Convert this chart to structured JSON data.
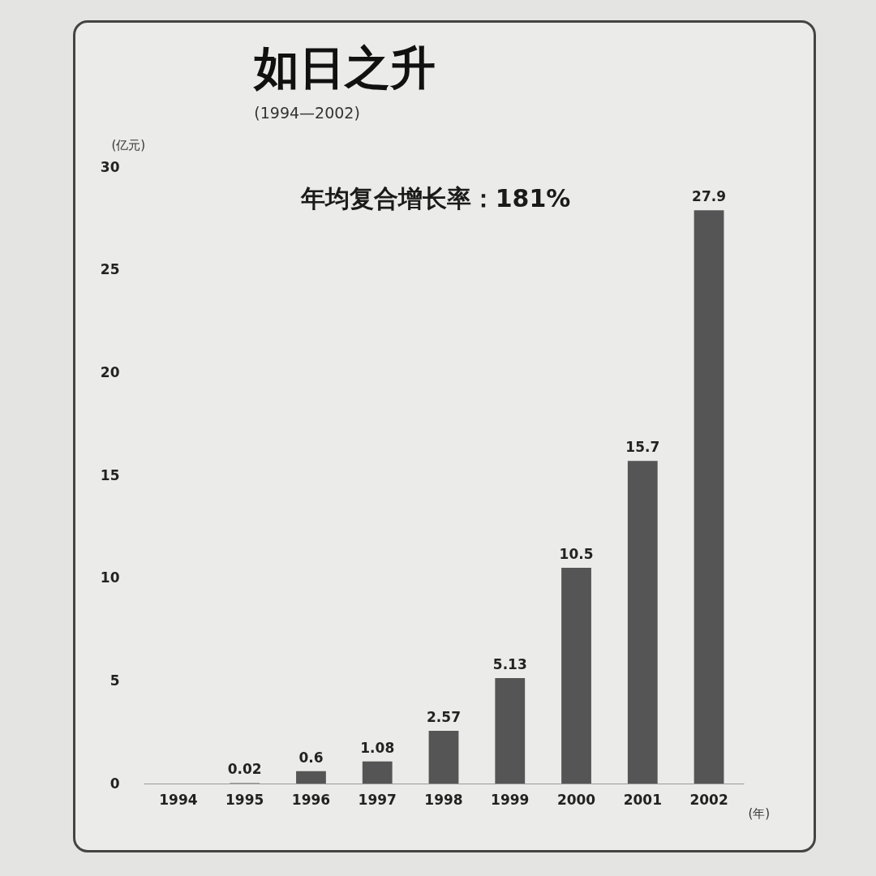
{
  "chart_data": {
    "type": "bar",
    "title": "如日之升",
    "subtitle": "(1994—2002)",
    "ylabel": "(亿元)",
    "xlabel": "(年)",
    "annotations": [
      "年均复合增长率：181%"
    ],
    "categories": [
      "1994",
      "1995",
      "1996",
      "1997",
      "1998",
      "1999",
      "2000",
      "2001",
      "2002"
    ],
    "values": [
      0,
      0.02,
      0.6,
      1.08,
      2.57,
      5.13,
      10.5,
      15.7,
      27.9
    ],
    "value_labels": [
      null,
      "0.02",
      "0.6",
      "1.08",
      "2.57",
      "5.13",
      "10.5",
      "15.7",
      "27.9"
    ],
    "color": "#555555",
    "ylim": [
      0,
      30
    ],
    "yticks": [
      0,
      5,
      10,
      15,
      20,
      25,
      30
    ],
    "grid": false
  }
}
